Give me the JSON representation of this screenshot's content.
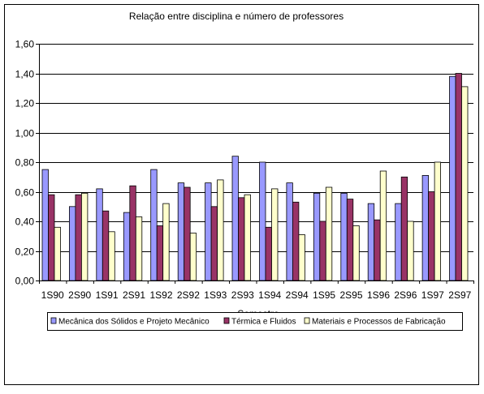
{
  "chart_data": {
    "type": "bar",
    "title": "Relação entre disciplina e número de professores",
    "xlabel": "Semestre",
    "ylabel": "",
    "ylim": [
      0,
      1.6
    ],
    "yticks": [
      "0,00",
      "0,20",
      "0,40",
      "0,60",
      "0,80",
      "1,00",
      "1,20",
      "1,40",
      "1,60"
    ],
    "grid": true,
    "legend_position": "bottom",
    "categories": [
      "1S90",
      "2S90",
      "1S91",
      "2S91",
      "1S92",
      "2S92",
      "1S93",
      "2S93",
      "1S94",
      "2S94",
      "1S95",
      "2S95",
      "1S96",
      "2S96",
      "1S97",
      "2S97"
    ],
    "series": [
      {
        "name": "Mecânica dos Sólidos e Projeto Mecânico",
        "color": "#9999FF",
        "values": [
          0.75,
          0.5,
          0.62,
          0.46,
          0.75,
          0.66,
          0.66,
          0.84,
          0.8,
          0.66,
          0.59,
          0.59,
          0.52,
          0.52,
          0.71,
          1.38
        ]
      },
      {
        "name": "Térmica e Fluidos",
        "color": "#993366",
        "values": [
          0.58,
          0.58,
          0.47,
          0.64,
          0.37,
          0.63,
          0.5,
          0.56,
          0.36,
          0.53,
          0.4,
          0.55,
          0.41,
          0.7,
          0.6,
          1.4
        ]
      },
      {
        "name": "Materiais e Processos de Fabricação",
        "color": "#FFFFCC",
        "values": [
          0.36,
          0.59,
          0.33,
          0.43,
          0.52,
          0.32,
          0.68,
          0.58,
          0.62,
          0.31,
          0.63,
          0.37,
          0.74,
          0.4,
          0.8,
          1.31
        ]
      }
    ]
  }
}
